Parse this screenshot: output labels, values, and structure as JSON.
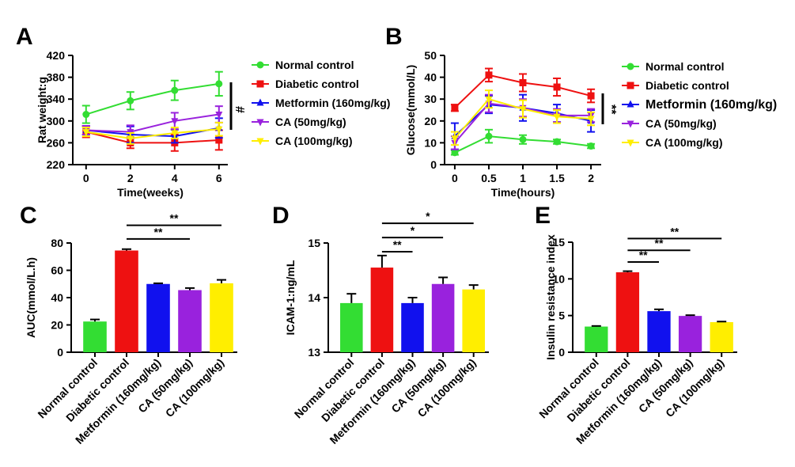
{
  "panels": [
    {
      "letter": "A",
      "chart_data": {
        "type": "line",
        "xlabel": "Time(weeks)",
        "ylabel": "Rat weight:g",
        "x": [
          0,
          2,
          4,
          6
        ],
        "xticks": [
          "0",
          "2",
          "4",
          "6"
        ],
        "yticks": [
          "220",
          "260",
          "300",
          "340",
          "380",
          "420"
        ],
        "ylim": [
          220,
          420
        ],
        "xlim": [
          -0.6,
          6.4
        ],
        "legend_position": "right",
        "significance": "#",
        "series": [
          {
            "name": "Normal control",
            "color": "#33dd33",
            "marker": "circle",
            "values": [
              312,
              337,
              356,
              368
            ],
            "errors": [
              16,
              16,
              18,
              22
            ]
          },
          {
            "name": "Diabetic control",
            "color": "#ee1111",
            "marker": "square",
            "values": [
              280,
              260,
              260,
              265
            ],
            "errors": [
              10,
              10,
              15,
              18
            ]
          },
          {
            "name": "Metformin (160mg/kg)",
            "color": "#1111ee",
            "marker": "triangle-up",
            "values": [
              283,
              275,
              272,
              287
            ],
            "errors": [
              8,
              15,
              12,
              18
            ]
          },
          {
            "name": "CA (50mg/kg)",
            "color": "#9922dd",
            "marker": "triangle-down",
            "values": [
              283,
              280,
              300,
              312
            ],
            "errors": [
              8,
              12,
              15,
              15
            ]
          },
          {
            "name": "CA (100mg/kg)",
            "color": "#ffee00",
            "marker": "triangle-down",
            "values": [
              280,
              268,
              278,
              285
            ],
            "errors": [
              8,
              10,
              10,
              12
            ]
          }
        ]
      }
    },
    {
      "letter": "B",
      "chart_data": {
        "type": "line",
        "xlabel": "Time(hours)",
        "ylabel": "Glucose(mmol/L)",
        "x": [
          0,
          0.5,
          1,
          1.5,
          2
        ],
        "xticks": [
          "0",
          "0.5",
          "1",
          "1.5",
          "2"
        ],
        "yticks": [
          "0",
          "10",
          "20",
          "30",
          "40",
          "50"
        ],
        "ylim": [
          0,
          50
        ],
        "xlim": [
          -0.15,
          2.15
        ],
        "legend_position": "right",
        "significance": "**",
        "series": [
          {
            "name": "Normal control",
            "color": "#33dd33",
            "marker": "circle",
            "values": [
              5.5,
              13,
              11.5,
              10.5,
              8.5
            ],
            "errors": [
              1,
              3,
              2,
              1,
              1
            ]
          },
          {
            "name": "Diabetic control",
            "color": "#ee1111",
            "marker": "square",
            "values": [
              26,
              41,
              37.5,
              35.5,
              31.5
            ],
            "errors": [
              1.5,
              3,
              4,
              4,
              3
            ]
          },
          {
            "name": "Metformin (160mg/kg)",
            "color": "#1111ee",
            "marker": "triangle-up",
            "values": [
              13,
              27.5,
              26,
              23.5,
              20
            ],
            "errors": [
              6,
              4,
              6,
              4,
              5
            ]
          },
          {
            "name": "CA (50mg/kg)",
            "color": "#9922dd",
            "marker": "triangle-down",
            "values": [
              10,
              28,
              26,
              22.5,
              22.5
            ],
            "errors": [
              3,
              4,
              4,
              3,
              3
            ]
          },
          {
            "name": "CA (100mg/kg)",
            "color": "#ffee00",
            "marker": "triangle-down",
            "values": [
              12,
              30,
              25.5,
              22,
              21
            ],
            "errors": [
              3,
              4,
              4,
              3,
              3
            ]
          }
        ]
      }
    },
    {
      "letter": "C",
      "chart_data": {
        "type": "bar",
        "ylabel": "AUC(mmol/L.h)",
        "categories": [
          "Normal control",
          "Diabetic control",
          "Metformin (160mg/kg)",
          "CA (50mg/kg)",
          "CA (100mg/kg)"
        ],
        "colors": [
          "#33dd33",
          "#ee1111",
          "#1111ee",
          "#9922dd",
          "#ffee00"
        ],
        "values": [
          22.5,
          74.5,
          50,
          45.5,
          50.5
        ],
        "errors": [
          1.5,
          1,
          0.5,
          1.5,
          2.5
        ],
        "yticks": [
          "0",
          "20",
          "40",
          "60",
          "80"
        ],
        "ylim": [
          0,
          80
        ],
        "brackets": [
          {
            "from": 1,
            "to": 3,
            "label": "**",
            "y": 83
          },
          {
            "from": 1,
            "to": 4,
            "label": "**",
            "y": 93
          }
        ]
      }
    },
    {
      "letter": "D",
      "chart_data": {
        "type": "bar",
        "ylabel": "ICAM-1:ng/mL",
        "categories": [
          "Normal control",
          "Diabetic control",
          "Metformin (160mg/kg)",
          "CA (50mg/kg)",
          "CA (100mg/kg)"
        ],
        "colors": [
          "#33dd33",
          "#ee1111",
          "#1111ee",
          "#9922dd",
          "#ffee00"
        ],
        "values": [
          13.9,
          14.55,
          13.9,
          14.25,
          14.15
        ],
        "errors": [
          0.17,
          0.22,
          0.1,
          0.12,
          0.08
        ],
        "yticks": [
          "13",
          "14",
          "15"
        ],
        "ylim": [
          13,
          15
        ],
        "brackets": [
          {
            "from": 1,
            "to": 2,
            "label": "**",
            "y": 14.84
          },
          {
            "from": 1,
            "to": 3,
            "label": "*",
            "y": 15.1
          },
          {
            "from": 1,
            "to": 4,
            "label": "*",
            "y": 15.36
          }
        ]
      }
    },
    {
      "letter": "E",
      "chart_data": {
        "type": "bar",
        "ylabel": "Insulin resistance index",
        "categories": [
          "Normal control",
          "Diabetic control",
          "Metformin (160mg/kg)",
          "CA (50mg/kg)",
          "CA (100mg/kg)"
        ],
        "colors": [
          "#33dd33",
          "#ee1111",
          "#1111ee",
          "#9922dd",
          "#ffee00"
        ],
        "values": [
          3.5,
          10.9,
          5.6,
          4.95,
          4.1
        ],
        "errors": [
          0.08,
          0.15,
          0.25,
          0.1,
          0.08
        ],
        "yticks": [
          "0",
          "5",
          "10",
          "15"
        ],
        "ylim": [
          0,
          15
        ],
        "brackets": [
          {
            "from": 1,
            "to": 2,
            "label": "**",
            "y": 12.3
          },
          {
            "from": 1,
            "to": 3,
            "label": "**",
            "y": 13.9
          },
          {
            "from": 1,
            "to": 4,
            "label": "**",
            "y": 15.5
          }
        ]
      }
    }
  ]
}
